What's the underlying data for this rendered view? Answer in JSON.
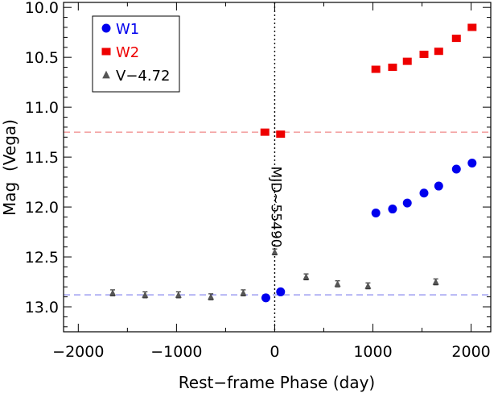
{
  "chart_data": {
    "type": "scatter",
    "xlabel": "Rest−frame Phase (day)",
    "ylabel": "Mag  (Vega)",
    "xlim": [
      -2150,
      2200
    ],
    "ylim": [
      13.25,
      9.95
    ],
    "y_inverted": true,
    "xticks": [
      -2000,
      -1000,
      0,
      1000,
      2000
    ],
    "xtick_labels": [
      "−2000",
      "−1000",
      "0",
      "1000",
      "2000"
    ],
    "yticks": [
      10.0,
      10.5,
      11.0,
      11.5,
      12.0,
      12.5,
      13.0
    ],
    "ytick_labels": [
      "10.0",
      "10.5",
      "11.0",
      "11.5",
      "12.0",
      "12.5",
      "13.0"
    ],
    "grid": false,
    "legend_position": "top-left",
    "series": [
      {
        "name": "W1",
        "marker": "circle",
        "color": "#0000ee",
        "points": [
          [
            -90,
            12.91
          ],
          [
            60,
            12.85
          ],
          [
            1030,
            12.06
          ],
          [
            1200,
            12.02
          ],
          [
            1350,
            11.96
          ],
          [
            1520,
            11.86
          ],
          [
            1670,
            11.79
          ],
          [
            1850,
            11.62
          ],
          [
            2010,
            11.56
          ]
        ]
      },
      {
        "name": "W2",
        "marker": "square",
        "color": "#ee0000",
        "points": [
          [
            -100,
            11.25
          ],
          [
            60,
            11.27
          ],
          [
            1030,
            10.62
          ],
          [
            1200,
            10.6
          ],
          [
            1350,
            10.54
          ],
          [
            1520,
            10.47
          ],
          [
            1670,
            10.44
          ],
          [
            1850,
            10.31
          ],
          [
            2010,
            10.2
          ]
        ]
      },
      {
        "name": "V−4.72",
        "marker": "triangle",
        "color": "#555555",
        "error_bars": true,
        "points": [
          [
            -1650,
            12.86,
            0.03
          ],
          [
            -1320,
            12.88,
            0.03
          ],
          [
            -980,
            12.88,
            0.03
          ],
          [
            -650,
            12.9,
            0.03
          ],
          [
            -320,
            12.86,
            0.03
          ],
          [
            0,
            12.45,
            0.03
          ],
          [
            320,
            12.7,
            0.03
          ],
          [
            640,
            12.77,
            0.03
          ],
          [
            950,
            12.79,
            0.03
          ],
          [
            1640,
            12.75,
            0.03
          ]
        ]
      }
    ],
    "reference_lines": [
      {
        "orientation": "horizontal",
        "value": 11.25,
        "color": "#f08888",
        "style": "dashed"
      },
      {
        "orientation": "horizontal",
        "value": 12.88,
        "color": "#8888ee",
        "style": "dashed"
      },
      {
        "orientation": "vertical",
        "value": 0,
        "color": "#000000",
        "style": "dotted"
      }
    ],
    "annotations": [
      {
        "text": "MJD~55490",
        "x": -80,
        "y": 12.0,
        "rotation": -90
      }
    ]
  }
}
